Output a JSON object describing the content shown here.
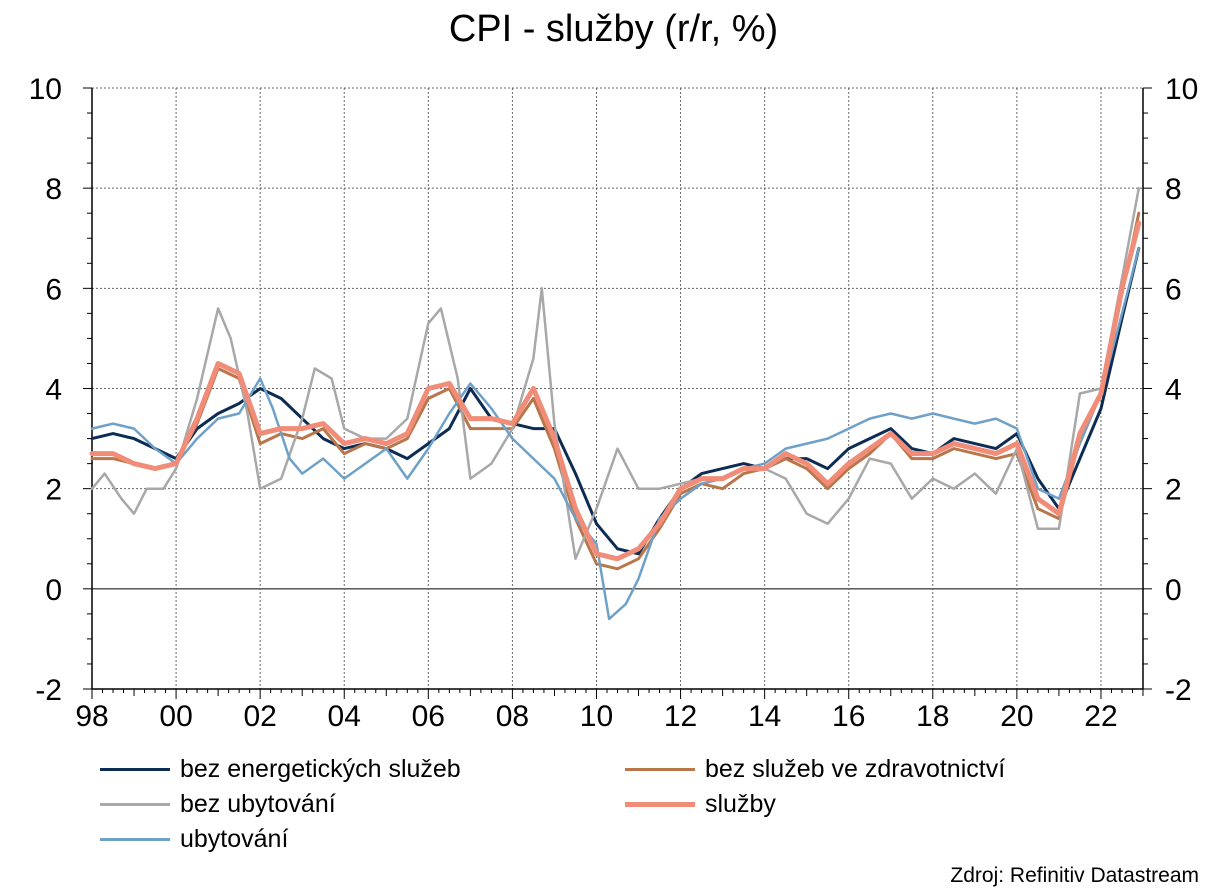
{
  "title": "CPI - služby (r/r, %)",
  "source": "Zdroj: Refinitiv Datastream",
  "chart_data": {
    "type": "line",
    "title": "CPI - služby (r/r, %)",
    "xlabel": "",
    "ylabel": "",
    "xlim": [
      1998.0,
      2023.0
    ],
    "ylim": [
      -2,
      10
    ],
    "y_ticks": [
      -2,
      0,
      2,
      4,
      6,
      8,
      10
    ],
    "x_tick_labels": [
      "98",
      "00",
      "02",
      "04",
      "06",
      "08",
      "10",
      "12",
      "14",
      "16",
      "18",
      "20",
      "22"
    ],
    "x_ticks": [
      1998,
      2000,
      2002,
      2004,
      2006,
      2008,
      2010,
      2012,
      2014,
      2016,
      2018,
      2020,
      2022
    ],
    "grid": true,
    "legend_position": "bottom",
    "series": [
      {
        "name": "bez energetických služeb",
        "color": "#0d2c54",
        "width": 3,
        "x": [
          1998.0,
          1998.5,
          1999.0,
          1999.5,
          2000.0,
          2000.5,
          2001.0,
          2001.5,
          2002.0,
          2002.5,
          2003.0,
          2003.5,
          2004.0,
          2004.5,
          2005.0,
          2005.5,
          2006.0,
          2006.5,
          2007.0,
          2007.5,
          2008.0,
          2008.5,
          2009.0,
          2009.5,
          2010.0,
          2010.5,
          2011.0,
          2011.5,
          2012.0,
          2012.5,
          2013.0,
          2013.5,
          2014.0,
          2014.5,
          2015.0,
          2015.5,
          2016.0,
          2016.5,
          2017.0,
          2017.5,
          2018.0,
          2018.5,
          2019.0,
          2019.5,
          2020.0,
          2020.5,
          2021.0,
          2021.5,
          2022.0,
          2022.5,
          2022.9
        ],
        "y": [
          3.0,
          3.1,
          3.0,
          2.8,
          2.6,
          3.2,
          3.5,
          3.7,
          4.0,
          3.8,
          3.4,
          3.0,
          2.8,
          2.9,
          2.8,
          2.6,
          2.9,
          3.2,
          4.0,
          3.4,
          3.3,
          3.2,
          3.2,
          2.3,
          1.3,
          0.8,
          0.7,
          1.4,
          2.0,
          2.3,
          2.4,
          2.5,
          2.4,
          2.6,
          2.6,
          2.4,
          2.8,
          3.0,
          3.2,
          2.8,
          2.7,
          3.0,
          2.9,
          2.8,
          3.1,
          2.2,
          1.6,
          2.6,
          3.6,
          5.4,
          6.8
        ]
      },
      {
        "name": "bez služeb ve zdravotnictví",
        "color": "#b8764a",
        "width": 3,
        "x": [
          1998.0,
          1998.5,
          1999.0,
          1999.5,
          2000.0,
          2000.5,
          2001.0,
          2001.5,
          2002.0,
          2002.5,
          2003.0,
          2003.5,
          2004.0,
          2004.5,
          2005.0,
          2005.5,
          2006.0,
          2006.5,
          2007.0,
          2007.5,
          2008.0,
          2008.5,
          2009.0,
          2009.5,
          2010.0,
          2010.5,
          2011.0,
          2011.5,
          2012.0,
          2012.5,
          2013.0,
          2013.5,
          2014.0,
          2014.5,
          2015.0,
          2015.5,
          2016.0,
          2016.5,
          2017.0,
          2017.5,
          2018.0,
          2018.5,
          2019.0,
          2019.5,
          2020.0,
          2020.5,
          2021.0,
          2021.5,
          2022.0,
          2022.5,
          2022.9
        ],
        "y": [
          2.6,
          2.6,
          2.5,
          2.4,
          2.5,
          3.3,
          4.4,
          4.2,
          2.9,
          3.1,
          3.0,
          3.2,
          2.7,
          2.9,
          2.8,
          3.0,
          3.8,
          4.0,
          3.2,
          3.2,
          3.2,
          3.8,
          2.8,
          1.4,
          0.5,
          0.4,
          0.6,
          1.2,
          1.9,
          2.1,
          2.0,
          2.3,
          2.4,
          2.6,
          2.4,
          2.0,
          2.4,
          2.7,
          3.1,
          2.6,
          2.6,
          2.8,
          2.7,
          2.6,
          2.7,
          1.6,
          1.4,
          3.0,
          3.9,
          5.9,
          7.5
        ]
      },
      {
        "name": "bez ubytování",
        "color": "#a8a8a8",
        "width": 2.5,
        "x": [
          1998.0,
          1998.3,
          1998.7,
          1999.0,
          1999.3,
          1999.7,
          2000.0,
          2000.5,
          2001.0,
          2001.3,
          2001.7,
          2002.0,
          2002.5,
          2003.0,
          2003.3,
          2003.7,
          2004.0,
          2004.5,
          2005.0,
          2005.5,
          2006.0,
          2006.3,
          2006.7,
          2007.0,
          2007.5,
          2008.0,
          2008.5,
          2008.7,
          2009.0,
          2009.5,
          2010.0,
          2010.5,
          2011.0,
          2011.5,
          2012.0,
          2012.5,
          2013.0,
          2013.5,
          2014.0,
          2014.5,
          2015.0,
          2015.5,
          2016.0,
          2016.5,
          2017.0,
          2017.5,
          2018.0,
          2018.5,
          2019.0,
          2019.5,
          2020.0,
          2020.5,
          2021.0,
          2021.5,
          2022.0,
          2022.5,
          2022.9
        ],
        "y": [
          2.0,
          2.3,
          1.8,
          1.5,
          2.0,
          2.0,
          2.4,
          3.8,
          5.6,
          5.0,
          3.5,
          2.0,
          2.2,
          3.4,
          4.4,
          4.2,
          3.2,
          3.0,
          3.0,
          3.4,
          5.3,
          5.6,
          4.2,
          2.2,
          2.5,
          3.2,
          4.6,
          6.0,
          3.3,
          0.6,
          1.6,
          2.8,
          2.0,
          2.0,
          2.1,
          2.2,
          2.2,
          2.4,
          2.4,
          2.2,
          1.5,
          1.3,
          1.8,
          2.6,
          2.5,
          1.8,
          2.2,
          2.0,
          2.3,
          1.9,
          2.8,
          1.2,
          1.2,
          3.9,
          4.0,
          6.2,
          8.0
        ]
      },
      {
        "name": "ubytování",
        "color": "#6fa1c8",
        "width": 2.5,
        "x": [
          1998.0,
          1998.5,
          1999.0,
          1999.5,
          2000.0,
          2000.5,
          2001.0,
          2001.5,
          2002.0,
          2002.3,
          2002.7,
          2003.0,
          2003.5,
          2004.0,
          2004.5,
          2005.0,
          2005.5,
          2006.0,
          2006.5,
          2007.0,
          2007.5,
          2008.0,
          2008.5,
          2009.0,
          2009.5,
          2010.0,
          2010.3,
          2010.7,
          2011.0,
          2011.5,
          2012.0,
          2012.5,
          2013.0,
          2013.5,
          2014.0,
          2014.5,
          2015.0,
          2015.5,
          2016.0,
          2016.5,
          2017.0,
          2017.5,
          2018.0,
          2018.5,
          2019.0,
          2019.5,
          2020.0,
          2020.5,
          2021.0,
          2021.5,
          2022.0,
          2022.5,
          2022.9
        ],
        "y": [
          3.2,
          3.3,
          3.2,
          2.8,
          2.5,
          3.0,
          3.4,
          3.5,
          4.2,
          3.6,
          2.6,
          2.3,
          2.6,
          2.2,
          2.5,
          2.8,
          2.2,
          2.8,
          3.5,
          4.1,
          3.6,
          3.0,
          2.6,
          2.2,
          1.4,
          0.9,
          -0.6,
          -0.3,
          0.2,
          1.4,
          1.8,
          2.1,
          2.2,
          2.4,
          2.5,
          2.8,
          2.9,
          3.0,
          3.2,
          3.4,
          3.5,
          3.4,
          3.5,
          3.4,
          3.3,
          3.4,
          3.2,
          2.0,
          1.8,
          2.9,
          3.9,
          5.5,
          6.8
        ]
      },
      {
        "name": "služby",
        "color": "#f08c78",
        "width": 5,
        "x": [
          1998.0,
          1998.5,
          1999.0,
          1999.5,
          2000.0,
          2000.5,
          2001.0,
          2001.5,
          2002.0,
          2002.5,
          2003.0,
          2003.5,
          2004.0,
          2004.5,
          2005.0,
          2005.5,
          2006.0,
          2006.5,
          2007.0,
          2007.5,
          2008.0,
          2008.5,
          2009.0,
          2009.5,
          2010.0,
          2010.5,
          2011.0,
          2011.5,
          2012.0,
          2012.5,
          2013.0,
          2013.5,
          2014.0,
          2014.5,
          2015.0,
          2015.5,
          2016.0,
          2016.5,
          2017.0,
          2017.5,
          2018.0,
          2018.5,
          2019.0,
          2019.5,
          2020.0,
          2020.5,
          2021.0,
          2021.5,
          2022.0,
          2022.5,
          2022.9
        ],
        "y": [
          2.7,
          2.7,
          2.5,
          2.4,
          2.5,
          3.4,
          4.5,
          4.3,
          3.1,
          3.2,
          3.2,
          3.3,
          2.9,
          3.0,
          2.9,
          3.1,
          4.0,
          4.1,
          3.4,
          3.4,
          3.3,
          4.0,
          3.0,
          1.6,
          0.7,
          0.6,
          0.8,
          1.3,
          2.0,
          2.2,
          2.2,
          2.4,
          2.4,
          2.7,
          2.5,
          2.1,
          2.5,
          2.8,
          3.1,
          2.7,
          2.7,
          2.9,
          2.8,
          2.7,
          2.9,
          1.8,
          1.5,
          3.1,
          3.9,
          6.0,
          7.3
        ]
      }
    ]
  },
  "legend": {
    "items": [
      {
        "label": "bez energetických služeb",
        "color": "#0d2c54"
      },
      {
        "label": "bez služeb ve zdravotnictví",
        "color": "#b8764a"
      },
      {
        "label": "bez ubytování",
        "color": "#a8a8a8"
      },
      {
        "label": "služby",
        "color": "#f08c78"
      },
      {
        "label": "ubytování",
        "color": "#6fa1c8"
      }
    ]
  }
}
